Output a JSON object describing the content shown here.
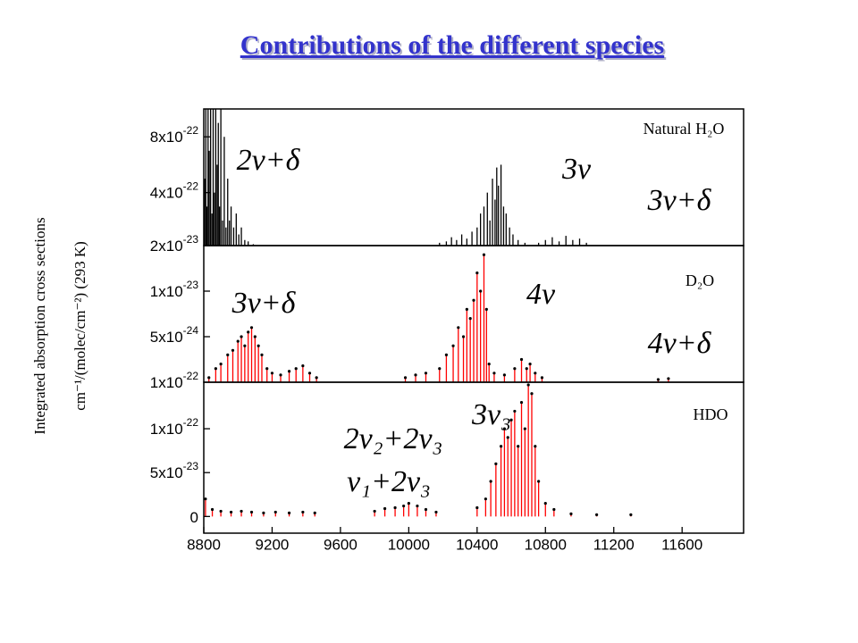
{
  "title": "Contributions of the different species",
  "y_label": [
    "Integrated absorption cross sections",
    "cm⁻¹/(molec/cm⁻²) (293 K)"
  ],
  "chart_data": [
    {
      "type": "stick",
      "panel_label": "Natural H₂O",
      "color": "#000000",
      "annotations": [
        "2ν+δ",
        "3ν",
        "3ν+δ"
      ],
      "xlim": [
        8800,
        11960
      ],
      "ylim": [
        2e-23,
        1e-21
      ],
      "yticks": [
        {
          "value": 2e-23,
          "label": "2x10-23"
        },
        {
          "value": 4e-22,
          "label": "4x10-22"
        },
        {
          "value": 8e-22,
          "label": "8x10-22"
        }
      ],
      "x": [
        8805,
        8812,
        8818,
        8825,
        8832,
        8840,
        8848,
        8855,
        8862,
        8870,
        8878,
        8885,
        8892,
        8900,
        8910,
        8920,
        8930,
        8940,
        8950,
        8960,
        8975,
        8990,
        9005,
        9020,
        9040,
        9060,
        9090,
        10180,
        10220,
        10250,
        10280,
        10310,
        10340,
        10370,
        10400,
        10420,
        10440,
        10460,
        10475,
        10490,
        10505,
        10515,
        10525,
        10540,
        10555,
        10570,
        10590,
        10610,
        10640,
        10680,
        10760,
        10800,
        10840,
        10880,
        10920,
        10960,
        11000,
        11040
      ],
      "values": [
        5e-22,
        1e-21,
        3e-22,
        1e-21,
        7e-22,
        1e-21,
        2.5e-22,
        1e-21,
        4e-22,
        1e-21,
        6e-22,
        9e-22,
        3e-22,
        1e-21,
        2e-22,
        8e-22,
        1.5e-22,
        5e-22,
        2e-22,
        3e-22,
        1.5e-22,
        2.5e-22,
        1e-22,
        1.5e-22,
        6e-23,
        5e-23,
        3e-23,
        4e-23,
        5e-23,
        8e-23,
        6e-23,
        1e-22,
        7e-23,
        1.2e-22,
        1.5e-22,
        2.5e-22,
        3e-22,
        4e-22,
        2e-22,
        5e-22,
        3.5e-22,
        5.8e-22,
        4.5e-22,
        6e-22,
        3e-22,
        2.5e-22,
        1.5e-22,
        1e-22,
        6e-23,
        4e-23,
        4e-23,
        6e-23,
        8e-23,
        5e-23,
        9e-23,
        6e-23,
        7e-23,
        4e-23
      ]
    },
    {
      "type": "stick",
      "panel_label": "D₂O",
      "color": "#ff0000",
      "annotations": [
        "3ν+δ",
        "4ν",
        "4ν+δ"
      ],
      "edge_label": "1x10-22",
      "xlim": [
        8800,
        11960
      ],
      "ylim": [
        0,
        1.5e-23
      ],
      "yticks": [
        {
          "value": 5e-24,
          "label": "5x10-24"
        },
        {
          "value": 1e-23,
          "label": "1x10-23"
        }
      ],
      "x": [
        8830,
        8870,
        8900,
        8940,
        8970,
        9000,
        9020,
        9040,
        9060,
        9080,
        9100,
        9120,
        9140,
        9170,
        9200,
        9250,
        9300,
        9340,
        9380,
        9420,
        9460,
        9980,
        10040,
        10100,
        10180,
        10220,
        10260,
        10290,
        10320,
        10340,
        10360,
        10380,
        10400,
        10420,
        10440,
        10455,
        10470,
        10500,
        10560,
        10620,
        10660,
        10690,
        10710,
        10740,
        10780,
        11460,
        11520
      ],
      "values": [
        5e-25,
        1.5e-24,
        2e-24,
        3e-24,
        3.5e-24,
        4.5e-24,
        5e-24,
        4e-24,
        5.5e-24,
        6e-24,
        5e-24,
        4e-24,
        3e-24,
        1.5e-24,
        1e-24,
        8e-25,
        1.2e-24,
        1.5e-24,
        1.8e-24,
        1e-24,
        5e-25,
        5e-25,
        8e-25,
        1e-24,
        1.5e-24,
        3e-24,
        4e-24,
        6e-24,
        5e-24,
        8e-24,
        7e-24,
        9e-24,
        1.2e-23,
        1e-23,
        1.4e-23,
        8e-24,
        2e-24,
        1e-24,
        8e-25,
        1.5e-24,
        2.5e-24,
        1.5e-24,
        2e-24,
        1e-24,
        5e-25,
        3e-25,
        4e-25
      ]
    },
    {
      "type": "stick",
      "panel_label": "HDO",
      "color": "#ff0000",
      "annotations": [
        "3ν₃",
        "2ν₂+2ν₃",
        "ν₁+2ν₃"
      ],
      "xlim": [
        8800,
        11960
      ],
      "ylim": [
        -1.9e-23,
        1.53e-22
      ],
      "yticks": [
        0,
        {
          "value": 5e-23,
          "label": "5x10-23"
        },
        {
          "value": 1e-22,
          "label": "1x10-22"
        }
      ],
      "xticks": [
        8800,
        9200,
        9600,
        10000,
        10400,
        10800,
        11200,
        11600
      ],
      "x": [
        8810,
        8850,
        8900,
        8960,
        9020,
        9080,
        9150,
        9220,
        9300,
        9380,
        9450,
        9800,
        9860,
        9920,
        9970,
        10000,
        10050,
        10100,
        10160,
        10400,
        10450,
        10480,
        10510,
        10540,
        10560,
        10580,
        10600,
        10620,
        10640,
        10660,
        10680,
        10700,
        10720,
        10740,
        10760,
        10800,
        10850,
        10950,
        11100,
        11300
      ],
      "values": [
        2e-23,
        8e-24,
        6e-24,
        5e-24,
        6e-24,
        5e-24,
        4e-24,
        5e-24,
        4e-24,
        5e-24,
        4e-24,
        6e-24,
        9e-24,
        1e-23,
        1.2e-23,
        1.5e-23,
        1.2e-23,
        8e-24,
        5e-24,
        1e-23,
        2e-23,
        4e-23,
        6e-23,
        8e-23,
        1e-22,
        9e-23,
        1.1e-22,
        1.2e-22,
        8e-23,
        1.3e-22,
        1e-22,
        1.5e-22,
        1.4e-22,
        8e-23,
        4e-23,
        1.5e-23,
        8e-24,
        3e-24,
        2e-24,
        2e-24
      ]
    }
  ]
}
